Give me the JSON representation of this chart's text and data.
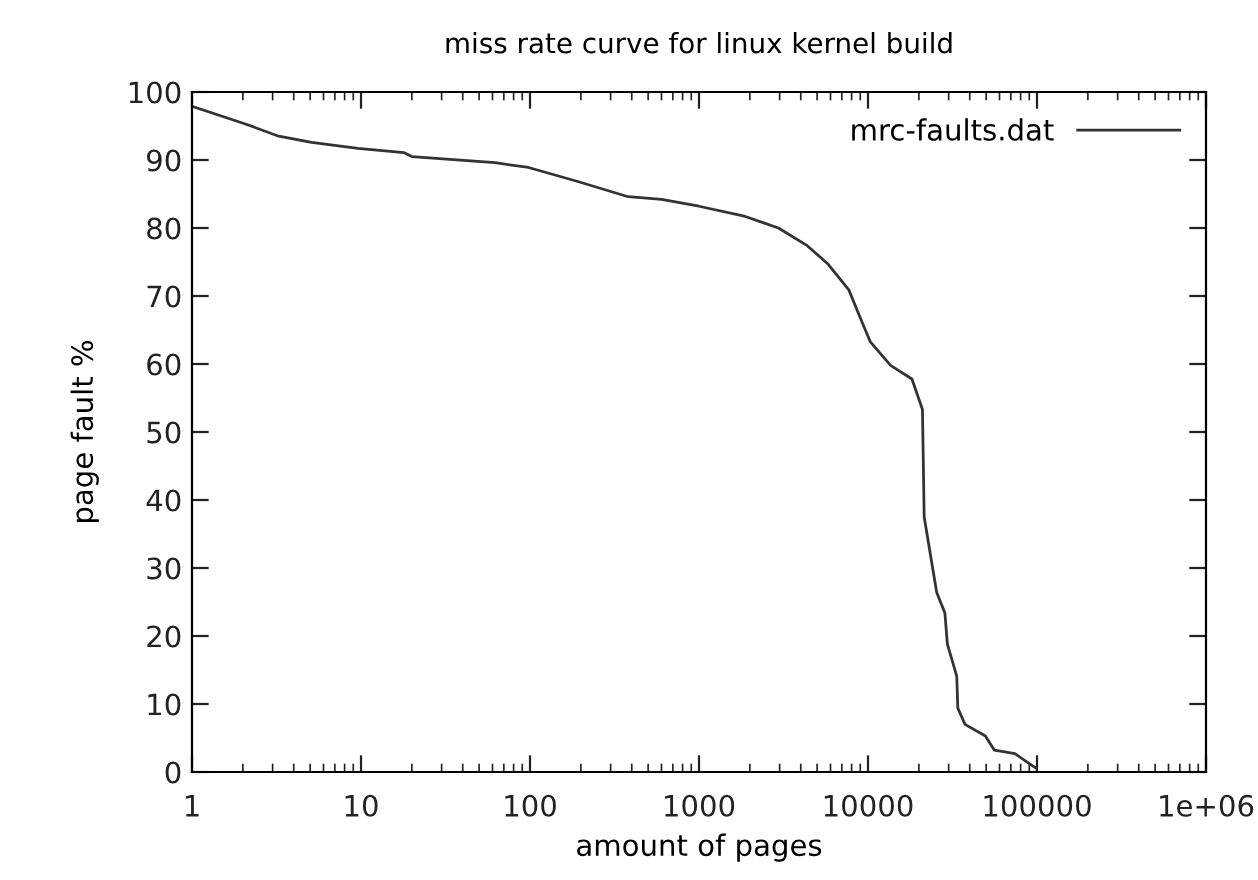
{
  "chart_data": {
    "type": "line",
    "title": "miss rate curve for linux kernel build",
    "xlabel": "amount of pages",
    "ylabel": "page fault %",
    "log": "x",
    "xlim": [
      1,
      1000000
    ],
    "ylim": [
      0,
      100
    ],
    "xticks": [
      1,
      10,
      100,
      1000,
      10000,
      100000,
      {
        "value": 1000000,
        "label": "1e+06"
      }
    ],
    "yticks": [
      0,
      10,
      20,
      30,
      40,
      50,
      60,
      70,
      80,
      90,
      100
    ],
    "grid": false,
    "legend": "top right",
    "marker": "none",
    "line_style": "solid",
    "series": [
      {
        "name": "mrc-faults.dat",
        "color": "#333333",
        "x": [
          1,
          2.07,
          3.26,
          5.1,
          9.6,
          17.9,
          20,
          62,
          98,
          194,
          381,
          600,
          1000,
          1880,
          2950,
          4370,
          5800,
          7700,
          9200,
          10300,
          13600,
          18200,
          21000,
          21500,
          25500,
          28500,
          29500,
          33500,
          34000,
          37500,
          49500,
          56000,
          74000,
          98000
        ],
        "values": [
          97.9,
          95.3,
          93.5,
          92.6,
          91.7,
          91.1,
          90.5,
          89.6,
          88.9,
          86.8,
          84.6,
          84.2,
          83.2,
          81.7,
          80.0,
          77.4,
          74.7,
          70.9,
          66.2,
          63.3,
          59.8,
          57.8,
          53.3,
          37.5,
          26.4,
          23.4,
          18.8,
          14.1,
          9.4,
          7.0,
          5.3,
          3.2,
          2.7,
          0.6
        ]
      }
    ]
  }
}
